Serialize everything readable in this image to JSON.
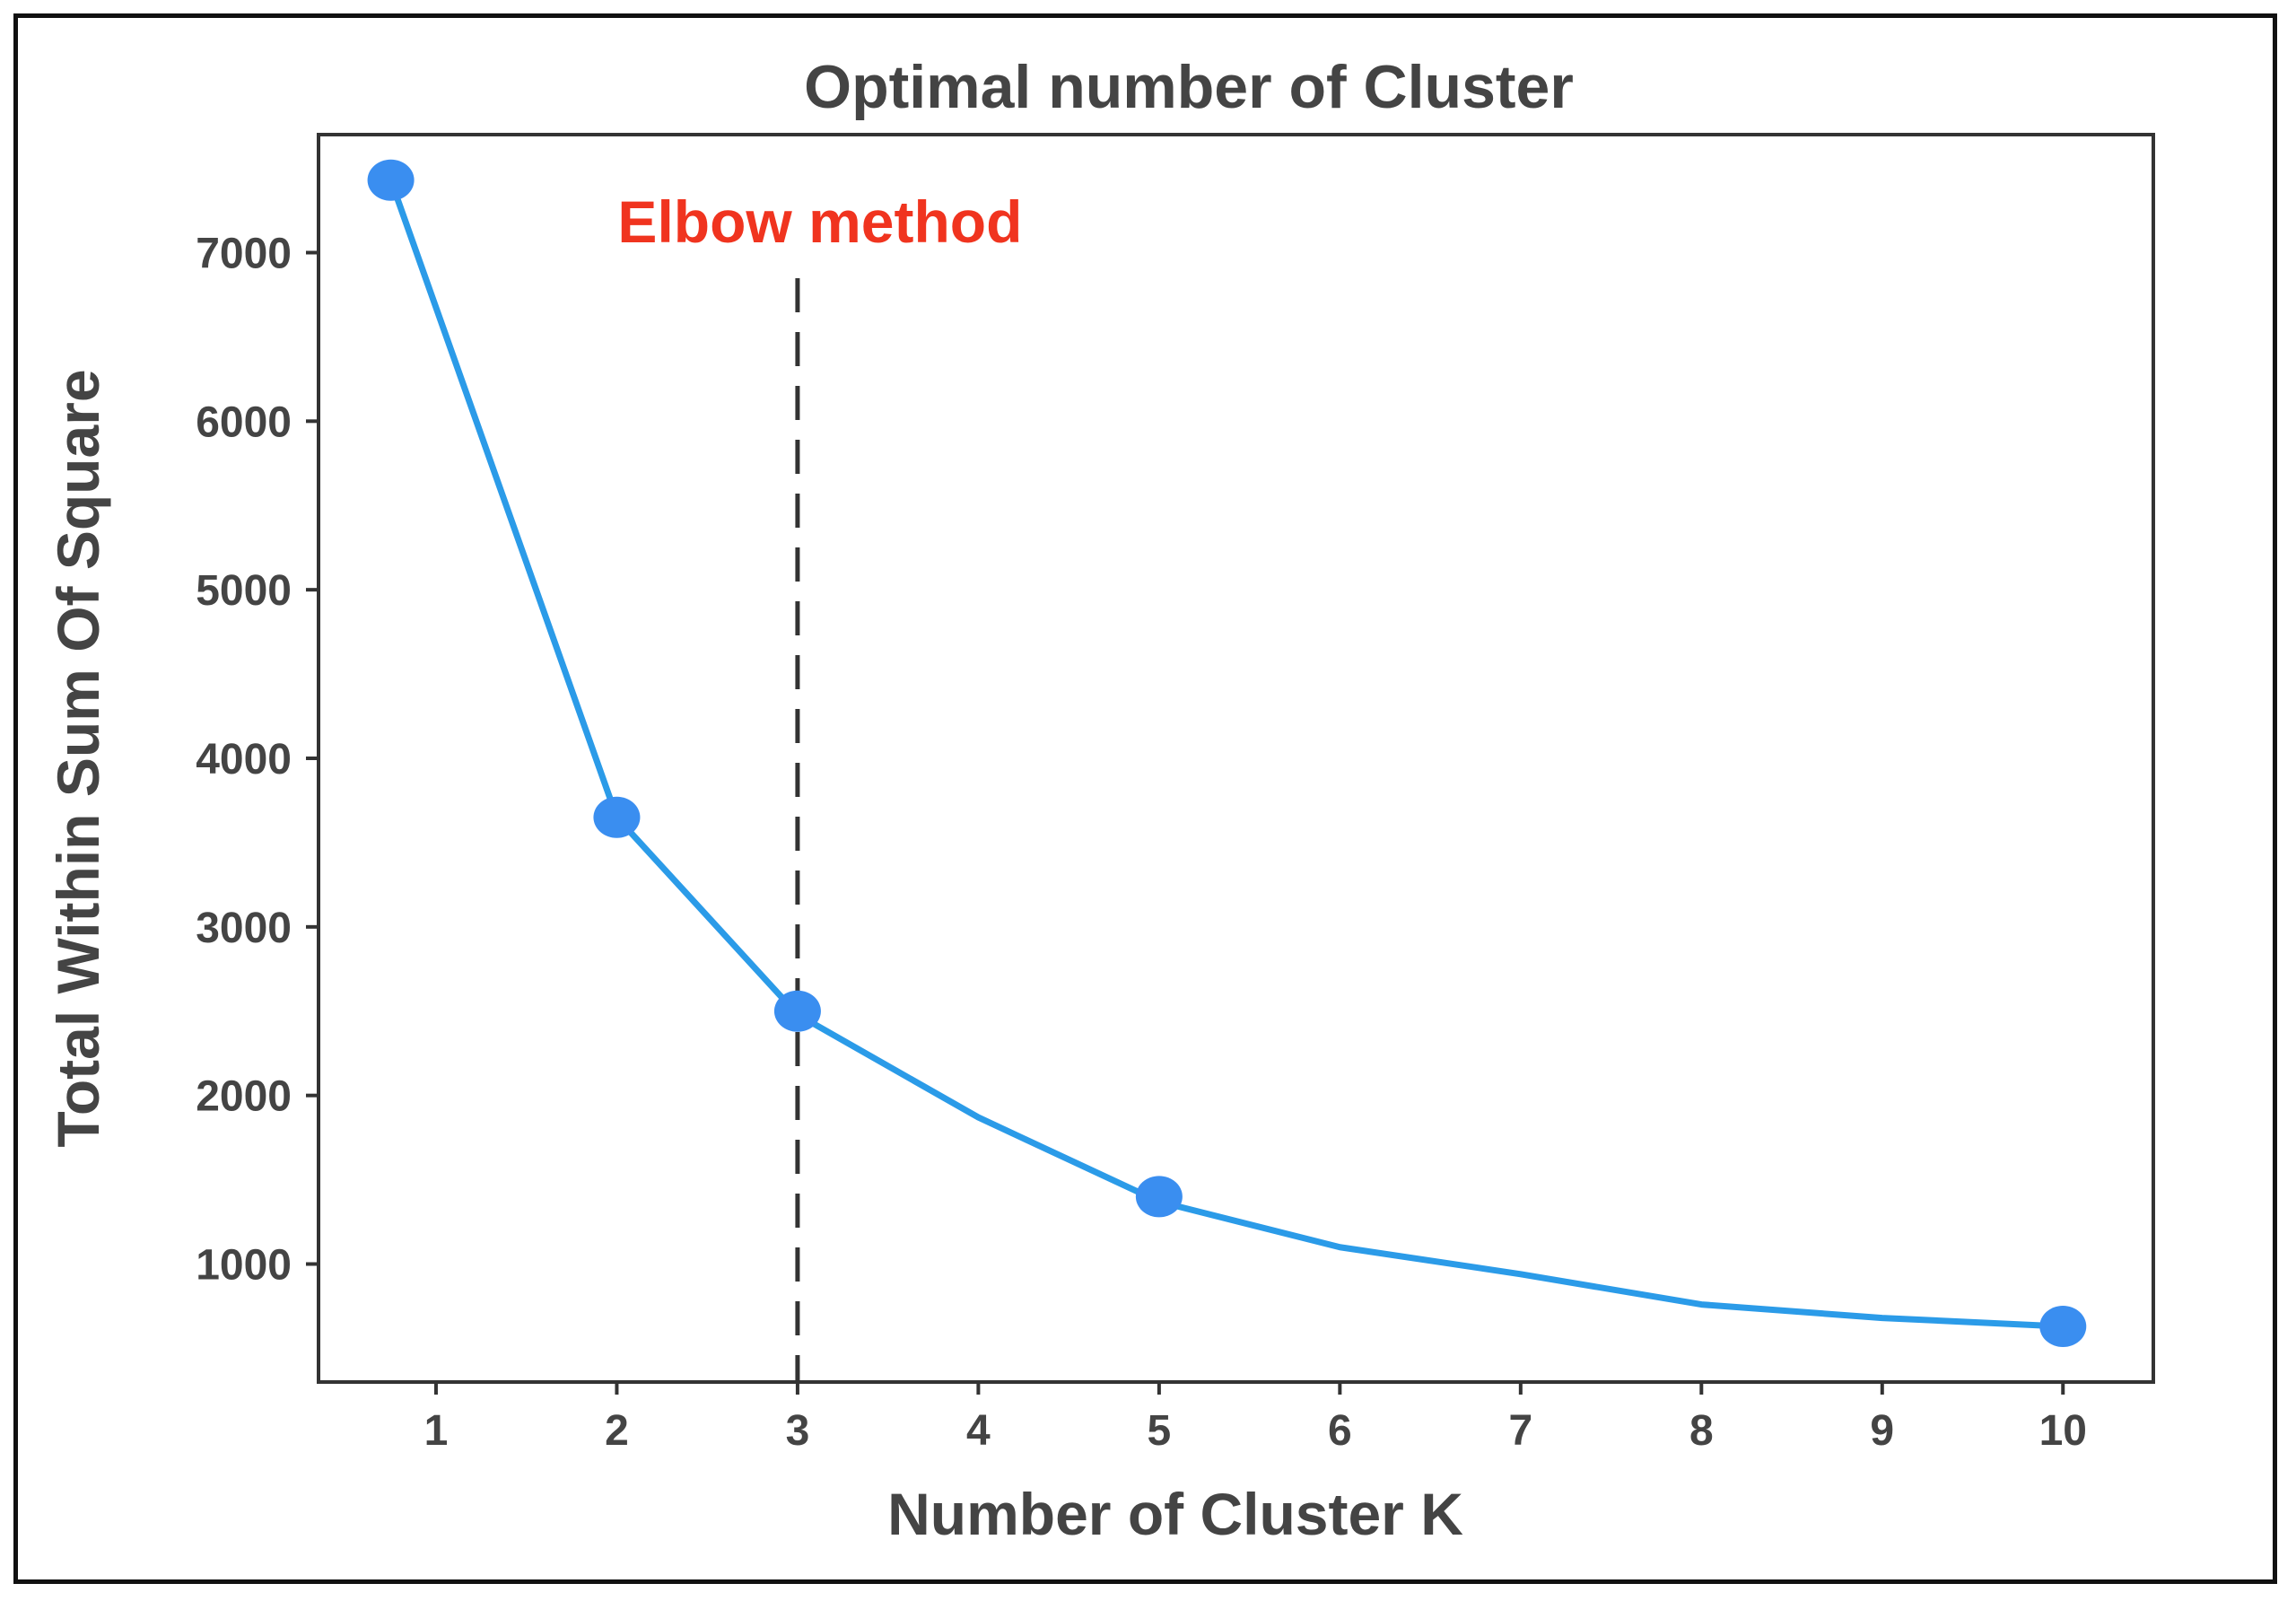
{
  "chart_data": {
    "type": "line",
    "title": "Optimal number of Cluster",
    "xlabel": "Number of Cluster K",
    "ylabel": "Total Within Sum Of Square",
    "x_ticks": [
      1,
      2,
      3,
      4,
      5,
      6,
      7,
      8,
      9,
      10
    ],
    "y_ticks": [
      1000,
      2000,
      3000,
      4000,
      5000,
      6000,
      7000
    ],
    "y_tick_labels": [
      "1000",
      "2000",
      "3000",
      "4000",
      "5000",
      "6000",
      "7000"
    ],
    "x_tick_labels": [
      "1",
      "2",
      "3",
      "4",
      "5",
      "6",
      "7",
      "8",
      "9",
      "10"
    ],
    "xlim": [
      0.35,
      10.5
    ],
    "ylim": [
      300,
      7700
    ],
    "series": [
      {
        "color": "#2b9be8",
        "x": [
          0.75,
          2,
          3,
          4,
          5,
          6,
          7,
          8,
          9,
          10
        ],
        "y": [
          7430,
          3650,
          2480,
          1870,
          1370,
          1100,
          940,
          760,
          680,
          630
        ]
      }
    ],
    "markers": {
      "color": "#3a8ef0",
      "x": [
        0.75,
        2,
        3,
        5,
        10
      ],
      "y": [
        7430,
        3650,
        2500,
        1400,
        630
      ]
    },
    "annotation": {
      "text": "Elbow method",
      "color": "#f0341f",
      "x": 3,
      "line_style": "dashed",
      "line_color": "#333333"
    },
    "grid": false,
    "legend": "none"
  }
}
